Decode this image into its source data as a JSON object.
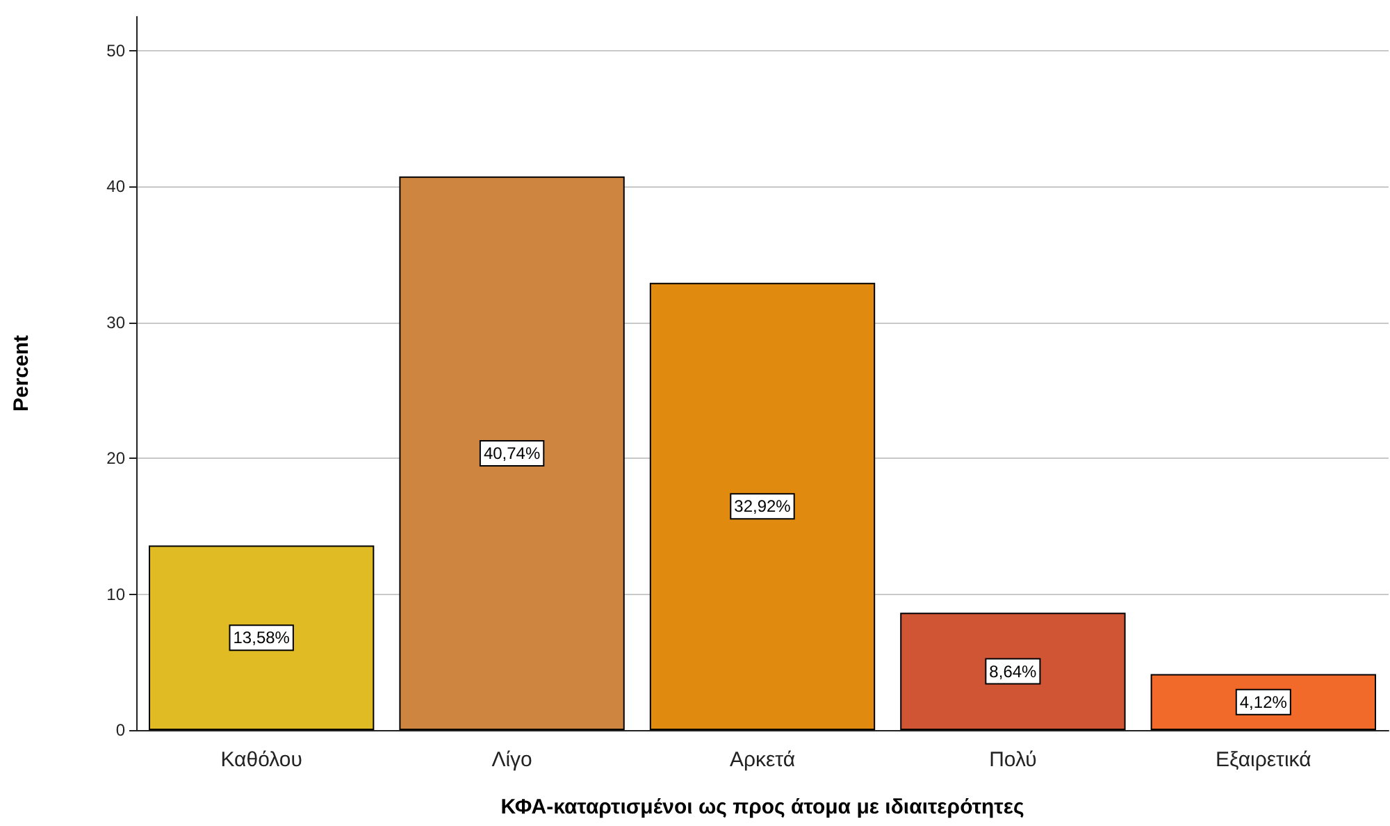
{
  "chart_data": {
    "type": "bar",
    "xlabel": "ΚΦΑ-καταρτισμένοι ως προς άτομα με ιδιαιτερότητες",
    "ylabel": "Percent",
    "categories": [
      "Καθόλου",
      "Λίγο",
      "Αρκετά",
      "Πολύ",
      "Εξαιρετικά"
    ],
    "values": [
      13.58,
      40.74,
      32.92,
      8.64,
      4.12
    ],
    "colors": [
      "#e1bb23",
      "#cd853f",
      "#e08b10",
      "#d05535",
      "#f26a2a"
    ],
    "value_labels": [
      "13,58%",
      "40,74%",
      "32,92%",
      "8,64%",
      "4,12%"
    ],
    "ylim": [
      0,
      52.5
    ],
    "yticks": [
      0,
      10,
      20,
      30,
      40,
      50
    ],
    "grid": "y"
  }
}
